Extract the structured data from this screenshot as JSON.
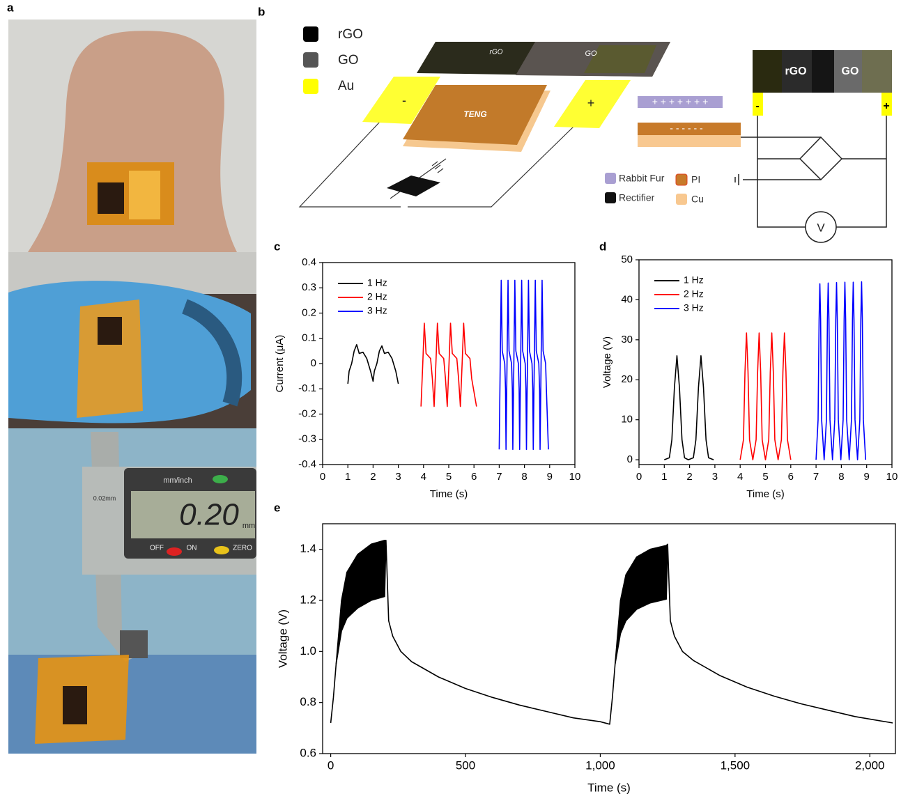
{
  "panel_labels": [
    "a",
    "b",
    "c",
    "d",
    "e"
  ],
  "photos": {
    "caliper": {
      "unit_switch": "mm/inch",
      "reading": "0.20",
      "unit": "mm",
      "off": "OFF",
      "on": "ON",
      "zero": "ZERO",
      "resolution": "0.02mm"
    }
  },
  "diagram": {
    "legend": [
      "rGO",
      "GO",
      "Au"
    ],
    "device": {
      "rgo": "rGO",
      "go": "GO",
      "teng": "TENG",
      "minus": "-",
      "plus": "+"
    },
    "charges": {
      "positive": "+ + + + + + +",
      "negative": "- - - - - -"
    },
    "materials": [
      "Rabbit Fur",
      "PI",
      "Rectifier",
      "Cu"
    ],
    "circuit": {
      "rgo": "rGO",
      "go": "GO",
      "minus": "-",
      "plus": "+",
      "meter": "V"
    }
  },
  "chart_data": [
    {
      "type": "line",
      "xlabel": "Time (s)",
      "ylabel": "Current (μA)",
      "xlim": [
        0,
        10
      ],
      "ylim": [
        -0.4,
        0.4
      ],
      "xticks": [
        0,
        1,
        2,
        3,
        4,
        5,
        6,
        7,
        8,
        9,
        10
      ],
      "yticks": [
        -0.4,
        -0.3,
        -0.2,
        -0.1,
        0,
        0.1,
        0.2,
        0.3,
        0.4
      ],
      "legend": "upper left",
      "series": [
        {
          "name": "1 Hz",
          "color": "#000000",
          "x": [
            1.0,
            1.05,
            1.15,
            1.25,
            1.35,
            1.45,
            1.6,
            1.75,
            1.9,
            2.0,
            2.05,
            2.15,
            2.25,
            2.35,
            2.45,
            2.6,
            2.75,
            2.9,
            3.0
          ],
          "values": [
            -0.08,
            -0.03,
            0.0,
            0.05,
            0.075,
            0.04,
            0.045,
            0.02,
            -0.03,
            -0.07,
            -0.03,
            0.0,
            0.05,
            0.07,
            0.04,
            0.045,
            0.02,
            -0.03,
            -0.08
          ]
        },
        {
          "name": "2 Hz",
          "color": "#ff0000",
          "x": [
            3.9,
            3.97,
            4.03,
            4.1,
            4.28,
            4.35,
            4.42,
            4.49,
            4.55,
            4.62,
            4.8,
            4.87,
            4.94,
            5.01,
            5.07,
            5.14,
            5.32,
            5.39,
            5.46,
            5.53,
            5.59,
            5.66,
            5.84,
            5.91,
            6.1
          ],
          "values": [
            -0.17,
            0,
            0.16,
            0.04,
            0.02,
            -0.06,
            -0.17,
            0,
            0.16,
            0.04,
            0.02,
            -0.06,
            -0.17,
            0,
            0.16,
            0.04,
            0.02,
            -0.06,
            -0.17,
            0,
            0.16,
            0.04,
            0.02,
            -0.06,
            -0.17
          ]
        },
        {
          "name": "3 Hz",
          "color": "#0000ff",
          "x": [
            7,
            7.04,
            7.08,
            7.12,
            7.22,
            7.25,
            7.27,
            7.31,
            7.35,
            7.39,
            7.49,
            7.52,
            7.54,
            7.58,
            7.62,
            7.66,
            7.76,
            7.79,
            7.81,
            7.85,
            7.89,
            7.93,
            8.03,
            8.06,
            8.08,
            8.12,
            8.16,
            8.2,
            8.3,
            8.33,
            8.35,
            8.39,
            8.43,
            8.47,
            8.57,
            8.6,
            8.62,
            8.66,
            8.7,
            8.74,
            8.84,
            8.87,
            8.95
          ],
          "values": [
            -0.34,
            0,
            0.33,
            0.05,
            0,
            -0.1,
            -0.34,
            0,
            0.33,
            0.05,
            0,
            -0.1,
            -0.34,
            0,
            0.33,
            0.05,
            0,
            -0.1,
            -0.34,
            0,
            0.33,
            0.05,
            0,
            -0.1,
            -0.34,
            0,
            0.33,
            0.05,
            0,
            -0.1,
            -0.34,
            0,
            0.33,
            0.05,
            0,
            -0.1,
            -0.34,
            0,
            0.33,
            0.05,
            0,
            -0.1,
            -0.34
          ]
        }
      ]
    },
    {
      "type": "line",
      "xlabel": "Time (s)",
      "ylabel": "Voltage (V)",
      "xlim": [
        0,
        10
      ],
      "ylim": [
        -1.2,
        50
      ],
      "xticks": [
        0,
        1,
        2,
        3,
        4,
        5,
        6,
        7,
        8,
        9,
        10
      ],
      "yticks": [
        0,
        10,
        20,
        30,
        40,
        50
      ],
      "legend": "upper left",
      "series": [
        {
          "name": "1 Hz",
          "color": "#000000",
          "x": [
            1.0,
            1.2,
            1.3,
            1.4,
            1.5,
            1.6,
            1.7,
            1.8,
            1.95,
            2.15,
            2.25,
            2.35,
            2.45,
            2.55,
            2.65,
            2.75,
            2.95
          ],
          "values": [
            0,
            0.5,
            5,
            18,
            26,
            18,
            5,
            0.5,
            0,
            0.5,
            5,
            18,
            26,
            18,
            5,
            0.5,
            0
          ]
        },
        {
          "name": "2 Hz",
          "color": "#ff0000",
          "x": [
            4.0,
            4.13,
            4.19,
            4.25,
            4.31,
            4.37,
            4.5,
            4.63,
            4.69,
            4.75,
            4.81,
            4.87,
            5.0,
            5.13,
            5.19,
            5.25,
            5.31,
            5.37,
            5.5,
            5.63,
            5.69,
            5.75,
            5.81,
            5.87,
            6.0
          ],
          "values": [
            0,
            5,
            22,
            31.7,
            22,
            5,
            0,
            5,
            22,
            31.7,
            22,
            5,
            0,
            5,
            22,
            31.7,
            22,
            5,
            0,
            5,
            22,
            31.7,
            22,
            5,
            0
          ]
        },
        {
          "name": "3 Hz",
          "color": "#0000ff",
          "x": [
            7.0,
            7.08,
            7.12,
            7.15,
            7.18,
            7.22,
            7.32,
            7.41,
            7.45,
            7.48,
            7.51,
            7.55,
            7.65,
            7.74,
            7.78,
            7.81,
            7.84,
            7.88,
            7.98,
            8.07,
            8.11,
            8.14,
            8.17,
            8.21,
            8.31,
            8.4,
            8.44,
            8.47,
            8.5,
            8.54,
            8.64,
            8.73,
            8.77,
            8.8,
            8.83,
            8.87,
            8.96
          ],
          "values": [
            0,
            10,
            35,
            44,
            35,
            10,
            0,
            10,
            35,
            44.2,
            35,
            10,
            0,
            10,
            35,
            44.3,
            35,
            10,
            0,
            10,
            35,
            44.4,
            35,
            10,
            0,
            10,
            35,
            44.4,
            35,
            10,
            0,
            10,
            35,
            44.5,
            35,
            10,
            0
          ]
        }
      ]
    },
    {
      "type": "line",
      "xlabel": "Time (s)",
      "ylabel": "Voltage (V)",
      "xlim": [
        -30,
        2095
      ],
      "ylim": [
        0.6,
        1.5
      ],
      "xticks": [
        0,
        500,
        {
          "value": 1000,
          "label": "1,000"
        },
        {
          "value": 1500,
          "label": "1,500"
        },
        {
          "value": 2000,
          "label": "2,000"
        }
      ],
      "yticks": [
        0.6,
        0.8,
        {
          "value": 1,
          "label": "1.0"
        },
        1.2,
        1.4
      ],
      "fill_between": true,
      "x": [
        0,
        10,
        20,
        40,
        60,
        100,
        150,
        200,
        205,
        215,
        230,
        260,
        300,
        400,
        500,
        600,
        700,
        800,
        900,
        1000,
        1035,
        1045,
        1055,
        1075,
        1095,
        1135,
        1185,
        1245,
        1250,
        1260,
        1275,
        1305,
        1345,
        1445,
        1545,
        1645,
        1745,
        1845,
        1945,
        2085
      ],
      "series": [
        {
          "color": "#000000",
          "values": [
            0.72,
            0.82,
            0.95,
            1.08,
            1.13,
            1.17,
            1.2,
            1.215,
            1.435,
            1.12,
            1.06,
            1.0,
            0.96,
            0.9,
            0.855,
            0.82,
            0.79,
            0.765,
            0.74,
            0.725,
            0.715,
            0.82,
            0.95,
            1.07,
            1.12,
            1.165,
            1.19,
            1.205,
            1.42,
            1.12,
            1.06,
            1.0,
            0.965,
            0.905,
            0.86,
            0.825,
            0.795,
            0.77,
            0.745,
            0.72
          ]
        },
        {
          "color": "#000000",
          "values": [
            null,
            null,
            0.95,
            1.2,
            1.31,
            1.38,
            1.42,
            1.435,
            1.435,
            null,
            null,
            null,
            null,
            null,
            null,
            null,
            null,
            null,
            null,
            null,
            null,
            null,
            0.95,
            1.2,
            1.3,
            1.37,
            1.4,
            1.415,
            1.42,
            null,
            null,
            null,
            null,
            null,
            null,
            null,
            null,
            null,
            null,
            null
          ]
        }
      ]
    }
  ]
}
